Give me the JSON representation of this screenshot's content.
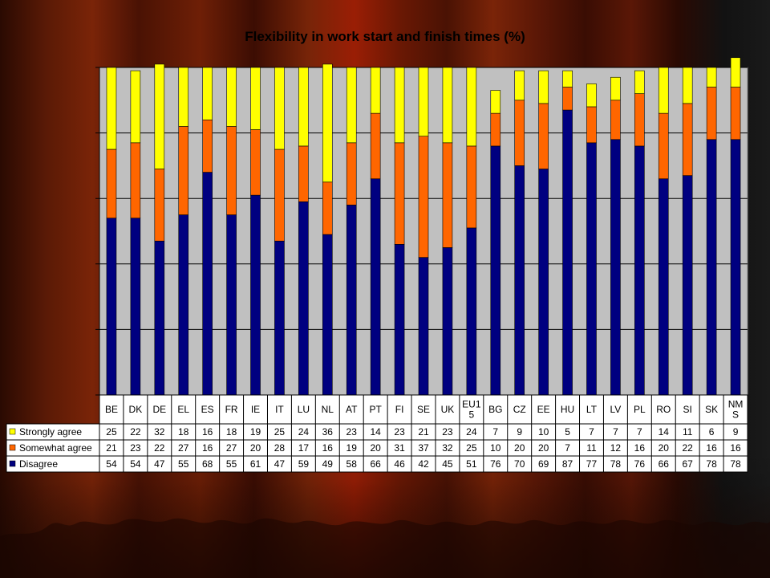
{
  "chart_data": {
    "type": "bar",
    "stacked": true,
    "title": "Flexibility in work start and finish times (%)",
    "categories": [
      "BE",
      "DK",
      "DE",
      "EL",
      "ES",
      "FR",
      "IE",
      "IT",
      "LU",
      "NL",
      "AT",
      "PT",
      "FI",
      "SE",
      "UK",
      "EU15",
      "BG",
      "CZ",
      "EE",
      "HU",
      "LT",
      "LV",
      "PL",
      "RO",
      "SI",
      "SK",
      "NMS"
    ],
    "category_labels": [
      [
        "BE"
      ],
      [
        "DK"
      ],
      [
        "DE"
      ],
      [
        "EL"
      ],
      [
        "ES"
      ],
      [
        "FR"
      ],
      [
        "IE"
      ],
      [
        "IT"
      ],
      [
        "LU"
      ],
      [
        "NL"
      ],
      [
        "AT"
      ],
      [
        "PT"
      ],
      [
        "FI"
      ],
      [
        "SE"
      ],
      [
        "UK"
      ],
      [
        "EU1",
        "5"
      ],
      [
        "BG"
      ],
      [
        "CZ"
      ],
      [
        "EE"
      ],
      [
        "HU"
      ],
      [
        "LT"
      ],
      [
        "LV"
      ],
      [
        "PL"
      ],
      [
        "RO"
      ],
      [
        "SI"
      ],
      [
        "SK"
      ],
      [
        "NM",
        "S"
      ]
    ],
    "series": [
      {
        "name": "Disagree",
        "color": "#000080",
        "values": [
          54,
          54,
          47,
          55,
          68,
          55,
          61,
          47,
          59,
          49,
          58,
          66,
          46,
          42,
          45,
          51,
          76,
          70,
          69,
          87,
          77,
          78,
          76,
          66,
          67,
          78,
          78
        ]
      },
      {
        "name": "Somewhat agree",
        "color": "#FF6600",
        "values": [
          21,
          23,
          22,
          27,
          16,
          27,
          20,
          28,
          17,
          16,
          19,
          20,
          31,
          37,
          32,
          25,
          10,
          20,
          20,
          7,
          11,
          12,
          16,
          20,
          22,
          16,
          16
        ]
      },
      {
        "name": "Strongly agree",
        "color": "#FFFF00",
        "values": [
          25,
          22,
          32,
          18,
          16,
          18,
          19,
          25,
          24,
          36,
          23,
          14,
          23,
          21,
          23,
          24,
          7,
          9,
          10,
          5,
          7,
          7,
          7,
          14,
          11,
          6,
          9
        ]
      }
    ],
    "ylim": [
      0,
      100
    ],
    "grid": true,
    "data_table": true,
    "plot_background": "#C0C0C0"
  }
}
